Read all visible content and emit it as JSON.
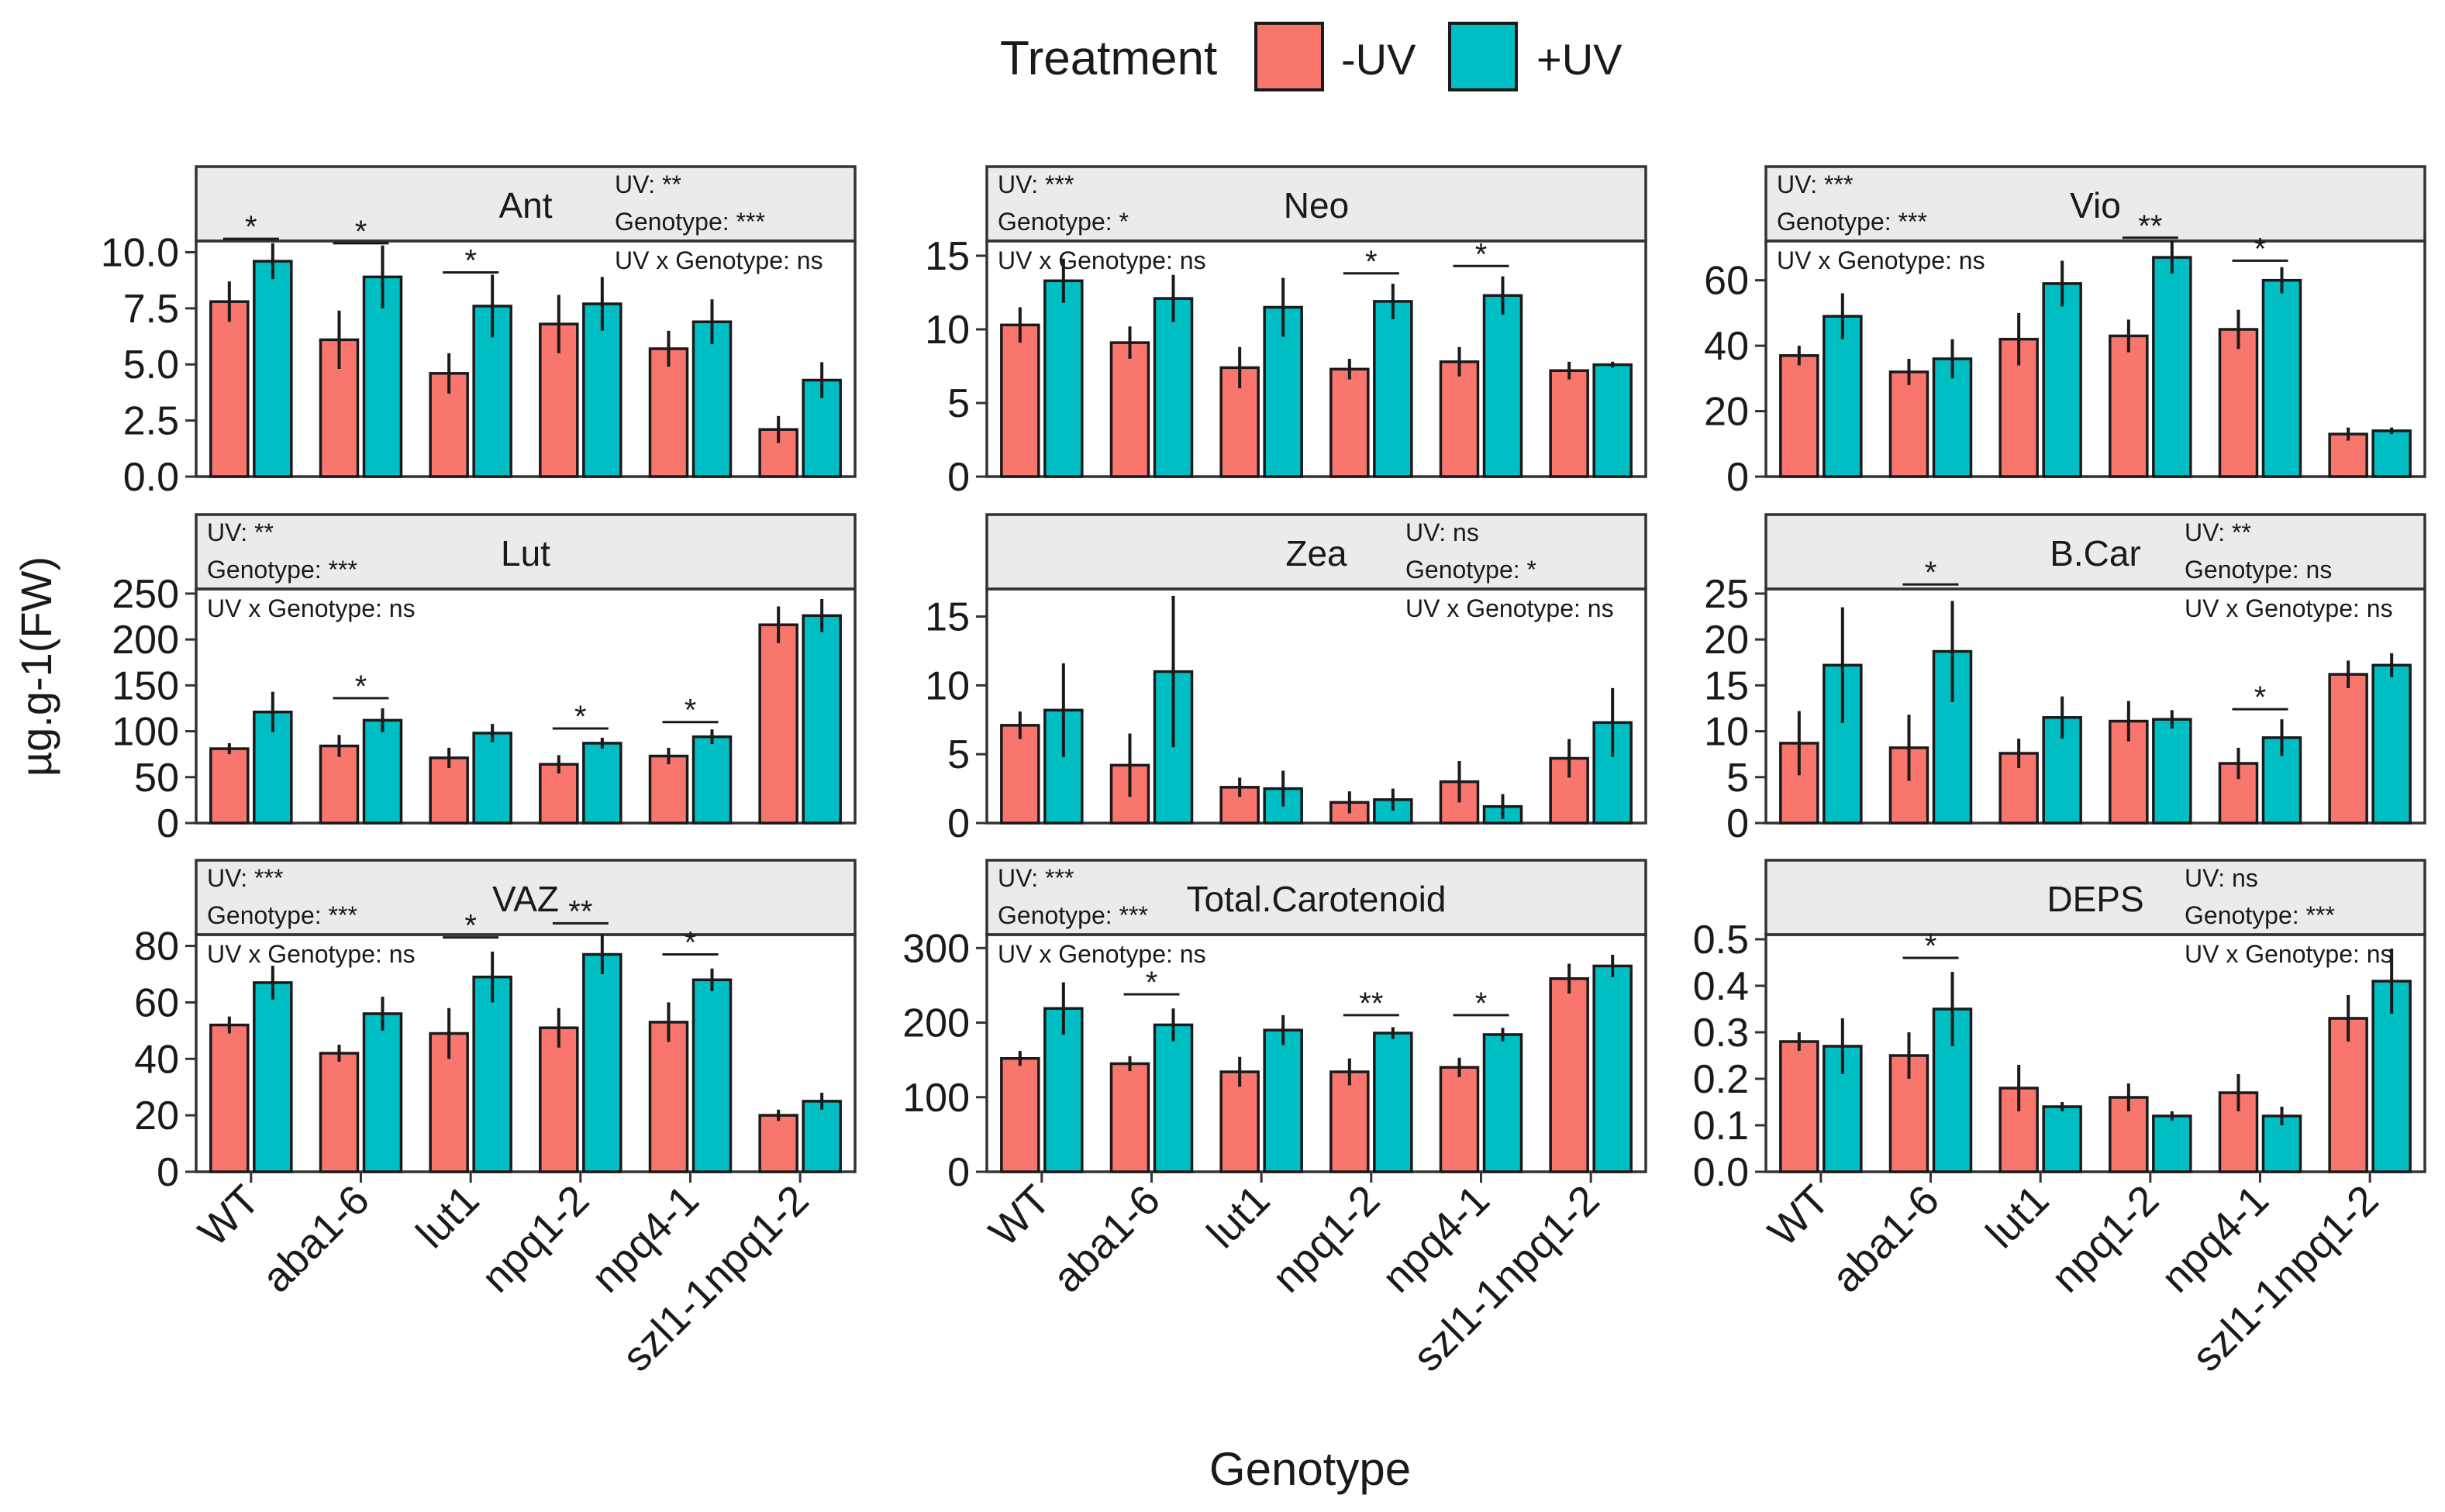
{
  "chart_data": {
    "type": "bar",
    "xlabel": "Genotype",
    "ylabel": "µg.g-1(FW)",
    "legend": {
      "title": "Treatment",
      "position": "top",
      "entries": [
        {
          "label": "-UV",
          "color": "#F8766D"
        },
        {
          "label": "+UV",
          "color": "#00BFC4"
        }
      ]
    },
    "categories": [
      "WT",
      "aba1-6",
      "lut1",
      "npq1-2",
      "npq4-1",
      "szl1-1npq1-2"
    ],
    "panels": [
      {
        "title": "Ant",
        "ylim": [
          0,
          10.5
        ],
        "yticks": [
          0,
          2.5,
          5,
          7.5,
          10
        ],
        "ytick_labels": [
          "0.0",
          "2.5",
          "5.0",
          "7.5",
          "10.0"
        ],
        "stats": [
          "UV: **",
          "Genotype: ***",
          "UV x Genotype: ns"
        ],
        "series": [
          {
            "name": "-UV",
            "values": [
              7.8,
              6.1,
              4.6,
              6.8,
              5.7,
              2.1
            ],
            "errors": [
              0.9,
              1.3,
              0.9,
              1.3,
              0.8,
              0.6
            ]
          },
          {
            "name": "+UV",
            "values": [
              9.6,
              8.9,
              7.6,
              7.7,
              6.9,
              4.3
            ],
            "errors": [
              0.8,
              1.4,
              1.4,
              1.2,
              1.0,
              0.8
            ]
          }
        ],
        "sig": [
          {
            "index": 0,
            "label": "*",
            "y": 10.6
          },
          {
            "index": 1,
            "label": "*",
            "y": 10.4
          },
          {
            "index": 2,
            "label": "*",
            "y": 9.1
          }
        ]
      },
      {
        "title": "Neo",
        "ylim": [
          0,
          16
        ],
        "yticks": [
          0,
          5,
          10,
          15
        ],
        "ytick_labels": [
          "0",
          "5",
          "10",
          "15"
        ],
        "stats": [
          "UV: ***",
          "Genotype: *",
          "UV x Genotype: ns"
        ],
        "series": [
          {
            "name": "-UV",
            "values": [
              10.3,
              9.1,
              7.4,
              7.3,
              7.8,
              7.2
            ],
            "errors": [
              1.2,
              1.1,
              1.4,
              0.7,
              1.0,
              0.6
            ]
          },
          {
            "name": "+UV",
            "values": [
              13.3,
              12.1,
              11.5,
              11.9,
              12.3,
              7.6
            ],
            "errors": [
              1.5,
              1.6,
              2.0,
              1.2,
              1.3,
              0.2
            ]
          }
        ],
        "sig": [
          {
            "index": 3,
            "label": "*",
            "y": 13.8
          },
          {
            "index": 4,
            "label": "*",
            "y": 14.3
          }
        ]
      },
      {
        "title": "Vio",
        "ylim": [
          0,
          72
        ],
        "yticks": [
          0,
          20,
          40,
          60
        ],
        "ytick_labels": [
          "0",
          "20",
          "40",
          "60"
        ],
        "stats": [
          "UV: ***",
          "Genotype: ***",
          "UV x Genotype: ns"
        ],
        "series": [
          {
            "name": "-UV",
            "values": [
              37,
              32,
              42,
              43,
              45,
              13
            ],
            "errors": [
              3,
              4,
              8,
              5,
              6,
              2
            ]
          },
          {
            "name": "+UV",
            "values": [
              49,
              36,
              59,
              67,
              60,
              14
            ],
            "errors": [
              7,
              6,
              7,
              5,
              4,
              1
            ]
          }
        ],
        "sig": [
          {
            "index": 3,
            "label": "**",
            "y": 73
          },
          {
            "index": 4,
            "label": "*",
            "y": 66
          }
        ]
      },
      {
        "title": "Lut",
        "ylim": [
          0,
          255
        ],
        "yticks": [
          0,
          50,
          100,
          150,
          200,
          250
        ],
        "ytick_labels": [
          "0",
          "50",
          "100",
          "150",
          "200",
          "250"
        ],
        "stats": [
          "UV: **",
          "Genotype: ***",
          "UV x Genotype: ns"
        ],
        "series": [
          {
            "name": "-UV",
            "values": [
              81,
              84,
              71,
              64,
              73,
              216
            ],
            "errors": [
              6,
              12,
              11,
              10,
              9,
              20
            ]
          },
          {
            "name": "+UV",
            "values": [
              121,
              112,
              98,
              87,
              94,
              226
            ],
            "errors": [
              22,
              13,
              10,
              6,
              8,
              18
            ]
          }
        ],
        "sig": [
          {
            "index": 1,
            "label": "*",
            "y": 136
          },
          {
            "index": 3,
            "label": "*",
            "y": 103
          },
          {
            "index": 4,
            "label": "*",
            "y": 110
          }
        ]
      },
      {
        "title": "Zea",
        "ylim": [
          0,
          17
        ],
        "yticks": [
          0,
          5,
          10,
          15
        ],
        "ytick_labels": [
          "0",
          "5",
          "10",
          "15"
        ],
        "stats": [
          "UV: ns",
          "Genotype: *",
          "UV x Genotype: ns"
        ],
        "series": [
          {
            "name": "-UV",
            "values": [
              7.1,
              4.2,
              2.6,
              1.5,
              3.0,
              4.7
            ],
            "errors": [
              1.0,
              2.3,
              0.7,
              0.8,
              1.5,
              1.4
            ]
          },
          {
            "name": "+UV",
            "values": [
              8.2,
              11.0,
              2.5,
              1.7,
              1.2,
              7.3
            ],
            "errors": [
              3.4,
              5.5,
              1.3,
              0.8,
              0.9,
              2.5
            ]
          }
        ],
        "sig": []
      },
      {
        "title": "B.Car",
        "ylim": [
          0,
          25.5
        ],
        "yticks": [
          0,
          5,
          10,
          15,
          20,
          25
        ],
        "ytick_labels": [
          "0",
          "5",
          "10",
          "15",
          "20",
          "25"
        ],
        "stats": [
          "UV: **",
          "Genotype: ns",
          "UV x Genotype: ns"
        ],
        "series": [
          {
            "name": "-UV",
            "values": [
              8.7,
              8.2,
              7.6,
              11.1,
              6.5,
              16.2
            ],
            "errors": [
              3.5,
              3.6,
              1.6,
              2.2,
              1.7,
              1.5
            ]
          },
          {
            "name": "+UV",
            "values": [
              17.2,
              18.7,
              11.5,
              11.3,
              9.3,
              17.2
            ],
            "errors": [
              6.3,
              5.5,
              2.3,
              1.0,
              2.0,
              1.3
            ]
          }
        ],
        "sig": [
          {
            "index": 1,
            "label": "*",
            "y": 26.0
          },
          {
            "index": 4,
            "label": "*",
            "y": 12.4
          }
        ]
      },
      {
        "title": "VAZ",
        "ylim": [
          0,
          84
        ],
        "yticks": [
          0,
          20,
          40,
          60,
          80
        ],
        "ytick_labels": [
          "0",
          "20",
          "40",
          "60",
          "80"
        ],
        "stats": [
          "UV: ***",
          "Genotype: ***",
          "UV x Genotype: ns"
        ],
        "series": [
          {
            "name": "-UV",
            "values": [
              52,
              42,
              49,
              51,
              53,
              20
            ],
            "errors": [
              3,
              3,
              9,
              7,
              7,
              2
            ]
          },
          {
            "name": "+UV",
            "values": [
              67,
              56,
              69,
              77,
              68,
              25
            ],
            "errors": [
              6,
              6,
              9,
              7,
              4,
              3
            ]
          }
        ],
        "sig": [
          {
            "index": 2,
            "label": "*",
            "y": 83
          },
          {
            "index": 3,
            "label": "**",
            "y": 88
          },
          {
            "index": 4,
            "label": "*",
            "y": 77
          }
        ]
      },
      {
        "title": "Total.Carotenoid",
        "ylim": [
          0,
          318
        ],
        "yticks": [
          0,
          100,
          200,
          300
        ],
        "ytick_labels": [
          "0",
          "100",
          "200",
          "300"
        ],
        "stats": [
          "UV: ***",
          "Genotype: ***",
          "UV x Genotype: ns"
        ],
        "series": [
          {
            "name": "-UV",
            "values": [
              152,
              145,
              134,
              134,
              140,
              259
            ],
            "errors": [
              10,
              10,
              20,
              18,
              13,
              20
            ]
          },
          {
            "name": "+UV",
            "values": [
              219,
              197,
              190,
              186,
              184,
              276
            ],
            "errors": [
              35,
              22,
              20,
              8,
              9,
              15
            ]
          }
        ],
        "sig": [
          {
            "index": 1,
            "label": "*",
            "y": 238
          },
          {
            "index": 3,
            "label": "**",
            "y": 210
          },
          {
            "index": 4,
            "label": "*",
            "y": 210
          }
        ]
      },
      {
        "title": "DEPS",
        "ylim": [
          0,
          0.51
        ],
        "yticks": [
          0,
          0.1,
          0.2,
          0.3,
          0.4,
          0.5
        ],
        "ytick_labels": [
          "0.0",
          "0.1",
          "0.2",
          "0.3",
          "0.4",
          "0.5"
        ],
        "stats": [
          "UV: ns",
          "Genotype: ***",
          "UV x Genotype: ns"
        ],
        "series": [
          {
            "name": "-UV",
            "values": [
              0.28,
              0.25,
              0.18,
              0.16,
              0.17,
              0.33
            ],
            "errors": [
              0.02,
              0.05,
              0.05,
              0.03,
              0.04,
              0.05
            ]
          },
          {
            "name": "+UV",
            "values": [
              0.27,
              0.35,
              0.14,
              0.12,
              0.12,
              0.41
            ],
            "errors": [
              0.06,
              0.08,
              0.01,
              0.01,
              0.02,
              0.07
            ]
          }
        ],
        "sig": [
          {
            "index": 1,
            "label": "*",
            "y": 0.46
          }
        ]
      }
    ]
  }
}
